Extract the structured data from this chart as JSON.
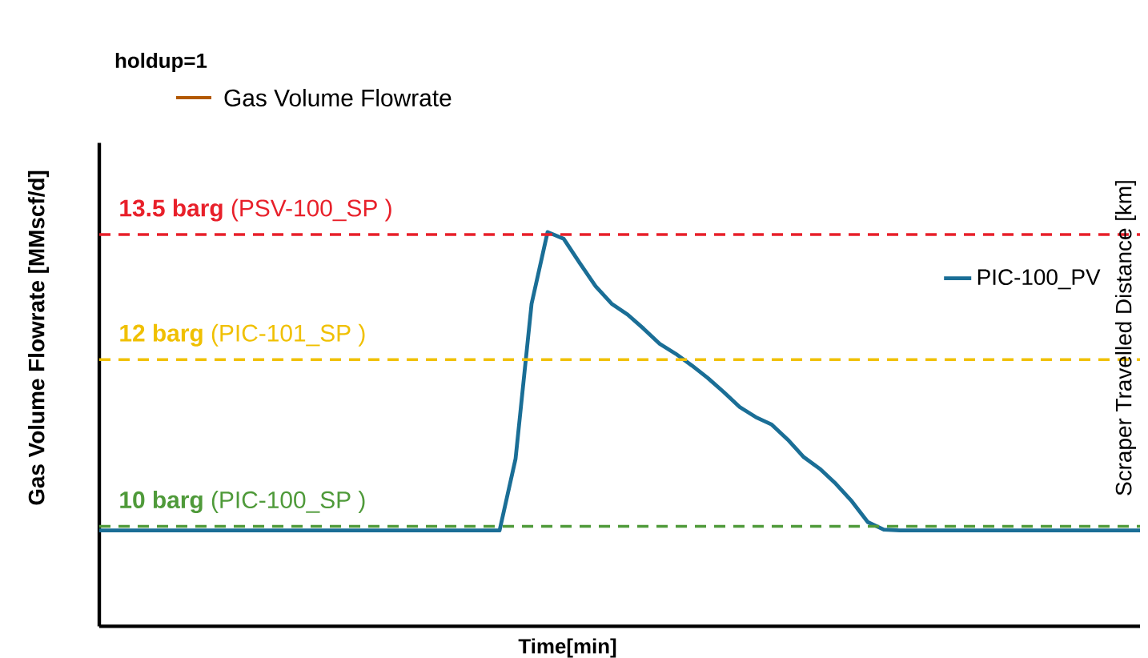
{
  "chart_data": {
    "type": "line",
    "xlabel": "Time[min]",
    "ylabel": "Gas Volume Flowrate [MMscf/d]",
    "y2label": "Scraper Travelled Distance [km]",
    "annotations": [
      "holdup=1",
      "Gas Volume Flowrate"
    ],
    "categories": [
      null,
      null,
      null,
      null,
      null,
      null,
      null,
      null,
      null,
      null,
      null,
      null,
      null,
      null,
      null,
      null,
      null,
      null,
      null,
      null,
      null,
      null,
      null,
      null,
      null,
      null,
      null,
      null,
      null,
      null,
      null,
      null,
      null,
      null,
      null,
      null,
      null,
      null,
      null,
      null,
      null,
      null,
      null,
      null,
      null,
      null,
      null,
      null,
      null,
      null,
      null,
      null,
      null,
      null,
      null,
      null,
      null,
      null,
      null,
      null,
      null,
      null,
      null,
      null,
      null,
      null
    ],
    "series": [
      {
        "name": "PIC-100_PV",
        "color": "#1a6e96",
        "values": [
          9.95,
          9.95,
          9.95,
          9.95,
          9.95,
          9.95,
          9.95,
          9.95,
          9.95,
          9.95,
          9.95,
          9.95,
          9.95,
          9.95,
          9.95,
          9.95,
          9.95,
          9.95,
          9.95,
          9.95,
          9.95,
          9.95,
          9.95,
          9.95,
          9.95,
          9.95,
          10.81,
          12.67,
          13.53,
          13.45,
          13.16,
          12.88,
          12.67,
          12.54,
          12.37,
          12.19,
          12.07,
          11.93,
          11.78,
          11.61,
          11.43,
          11.31,
          11.22,
          11.04,
          10.83,
          10.69,
          10.51,
          10.3,
          10.05,
          9.96,
          9.95,
          9.95,
          9.95,
          9.95,
          9.95,
          9.95,
          9.95,
          9.95,
          9.95,
          9.95,
          9.95,
          9.95,
          9.95,
          9.95,
          9.95,
          9.95
        ]
      }
    ],
    "ylim": [
      8.8,
      14.6
    ],
    "ref_lines": [
      {
        "axis": "y",
        "value": 13.5,
        "label": "**13.5 barg** (PSV-100_SP )",
        "color": "#e8202a",
        "line_style": "dashed"
      },
      {
        "axis": "y",
        "value": 12,
        "label": "**12 barg** (PIC-101_SP )",
        "color": "#f0c000",
        "line_style": "dashed"
      },
      {
        "axis": "y",
        "value": 10,
        "label": "**10 barg** (PIC-100_SP )",
        "color": "#4f9a3a",
        "line_style": "dashed"
      }
    ],
    "legend": "right",
    "marker": "none",
    "line_style": "solid",
    "tick_labels": false
  }
}
